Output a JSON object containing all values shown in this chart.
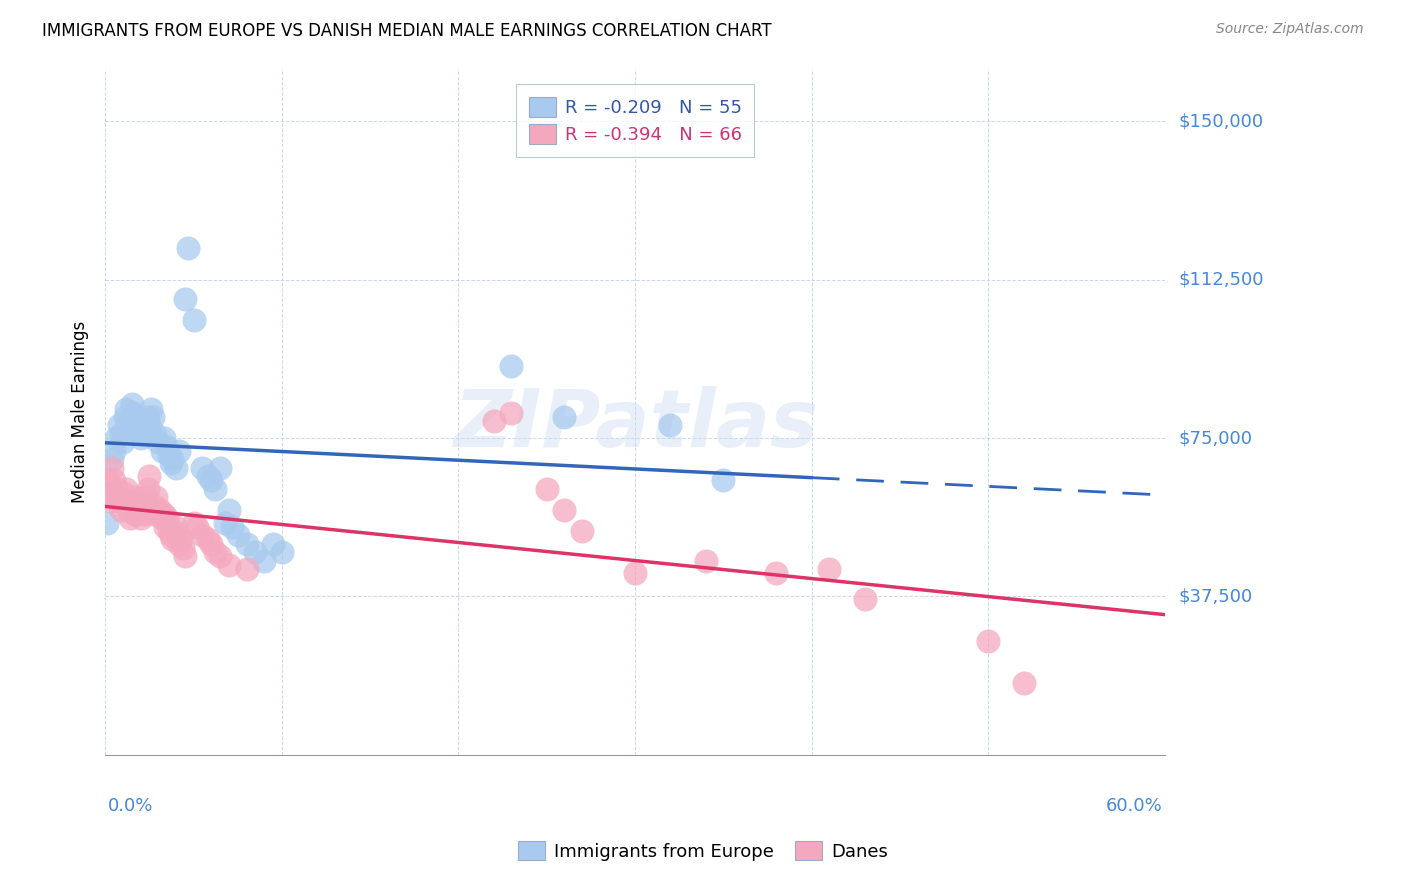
{
  "title": "IMMIGRANTS FROM EUROPE VS DANISH MEDIAN MALE EARNINGS CORRELATION CHART",
  "source": "Source: ZipAtlas.com",
  "ylabel": "Median Male Earnings",
  "yticks": [
    0,
    37500,
    75000,
    112500,
    150000
  ],
  "ytick_labels": [
    "",
    "$37,500",
    "$75,000",
    "$112,500",
    "$150,000"
  ],
  "xlim": [
    0.0,
    0.6
  ],
  "ylim": [
    0,
    162500
  ],
  "watermark": "ZIPatlas",
  "legend_blue_r": "-0.209",
  "legend_blue_n": "55",
  "legend_pink_r": "-0.394",
  "legend_pink_n": "66",
  "blue_color": "#a8caee",
  "pink_color": "#f4a8be",
  "trend_blue": "#3366bb",
  "trend_pink": "#dd3366",
  "blue_scatter": [
    [
      0.001,
      55000
    ],
    [
      0.004,
      70000
    ],
    [
      0.005,
      72000
    ],
    [
      0.006,
      75000
    ],
    [
      0.008,
      78000
    ],
    [
      0.009,
      76000
    ],
    [
      0.01,
      74000
    ],
    [
      0.011,
      80000
    ],
    [
      0.012,
      82000
    ],
    [
      0.013,
      79000
    ],
    [
      0.014,
      77000
    ],
    [
      0.015,
      83000
    ],
    [
      0.016,
      81000
    ],
    [
      0.017,
      78000
    ],
    [
      0.018,
      80000
    ],
    [
      0.019,
      77000
    ],
    [
      0.02,
      75000
    ],
    [
      0.021,
      79000
    ],
    [
      0.022,
      77000
    ],
    [
      0.023,
      76000
    ],
    [
      0.024,
      80000
    ],
    [
      0.025,
      78000
    ],
    [
      0.026,
      82000
    ],
    [
      0.027,
      80000
    ],
    [
      0.028,
      76000
    ],
    [
      0.03,
      74000
    ],
    [
      0.032,
      72000
    ],
    [
      0.033,
      75000
    ],
    [
      0.035,
      73000
    ],
    [
      0.036,
      71000
    ],
    [
      0.037,
      69000
    ],
    [
      0.038,
      70000
    ],
    [
      0.04,
      68000
    ],
    [
      0.042,
      72000
    ],
    [
      0.045,
      108000
    ],
    [
      0.047,
      120000
    ],
    [
      0.05,
      103000
    ],
    [
      0.055,
      68000
    ],
    [
      0.058,
      66000
    ],
    [
      0.06,
      65000
    ],
    [
      0.062,
      63000
    ],
    [
      0.065,
      68000
    ],
    [
      0.068,
      55000
    ],
    [
      0.07,
      58000
    ],
    [
      0.072,
      54000
    ],
    [
      0.075,
      52000
    ],
    [
      0.08,
      50000
    ],
    [
      0.085,
      48000
    ],
    [
      0.09,
      46000
    ],
    [
      0.095,
      50000
    ],
    [
      0.1,
      48000
    ],
    [
      0.23,
      92000
    ],
    [
      0.26,
      80000
    ],
    [
      0.32,
      78000
    ],
    [
      0.35,
      65000
    ]
  ],
  "pink_scatter": [
    [
      0.001,
      65000
    ],
    [
      0.002,
      62000
    ],
    [
      0.003,
      60000
    ],
    [
      0.004,
      68000
    ],
    [
      0.005,
      65000
    ],
    [
      0.006,
      63000
    ],
    [
      0.007,
      61000
    ],
    [
      0.008,
      60000
    ],
    [
      0.009,
      58000
    ],
    [
      0.01,
      62000
    ],
    [
      0.011,
      60000
    ],
    [
      0.012,
      63000
    ],
    [
      0.013,
      58000
    ],
    [
      0.014,
      56000
    ],
    [
      0.015,
      60000
    ],
    [
      0.016,
      58000
    ],
    [
      0.017,
      57000
    ],
    [
      0.018,
      61000
    ],
    [
      0.019,
      58000
    ],
    [
      0.02,
      56000
    ],
    [
      0.021,
      59000
    ],
    [
      0.022,
      57000
    ],
    [
      0.023,
      61000
    ],
    [
      0.024,
      63000
    ],
    [
      0.025,
      66000
    ],
    [
      0.026,
      58000
    ],
    [
      0.027,
      57000
    ],
    [
      0.028,
      59000
    ],
    [
      0.029,
      61000
    ],
    [
      0.03,
      57000
    ],
    [
      0.031,
      58000
    ],
    [
      0.032,
      56000
    ],
    [
      0.033,
      57000
    ],
    [
      0.034,
      54000
    ],
    [
      0.035,
      56000
    ],
    [
      0.036,
      53000
    ],
    [
      0.037,
      52000
    ],
    [
      0.038,
      51000
    ],
    [
      0.039,
      53000
    ],
    [
      0.04,
      54000
    ],
    [
      0.041,
      52000
    ],
    [
      0.042,
      50000
    ],
    [
      0.043,
      51000
    ],
    [
      0.044,
      49000
    ],
    [
      0.045,
      47000
    ],
    [
      0.05,
      55000
    ],
    [
      0.052,
      54000
    ],
    [
      0.055,
      52000
    ],
    [
      0.058,
      51000
    ],
    [
      0.06,
      50000
    ],
    [
      0.062,
      48000
    ],
    [
      0.065,
      47000
    ],
    [
      0.07,
      45000
    ],
    [
      0.08,
      44000
    ],
    [
      0.22,
      79000
    ],
    [
      0.23,
      81000
    ],
    [
      0.25,
      63000
    ],
    [
      0.26,
      58000
    ],
    [
      0.27,
      53000
    ],
    [
      0.3,
      43000
    ],
    [
      0.34,
      46000
    ],
    [
      0.38,
      43000
    ],
    [
      0.41,
      44000
    ],
    [
      0.43,
      37000
    ],
    [
      0.5,
      27000
    ],
    [
      0.52,
      17000
    ]
  ]
}
